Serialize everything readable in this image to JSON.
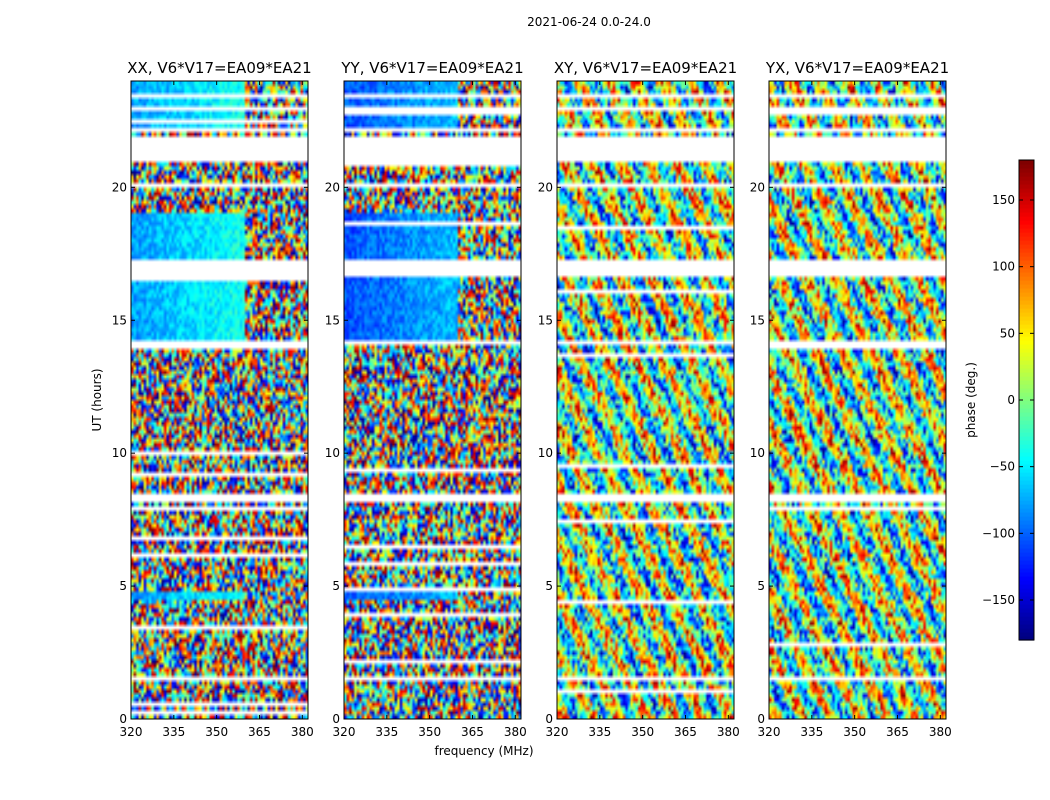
{
  "chart_data": {
    "type": "heatmap",
    "title": "2021-06-24 0.0-24.0",
    "colormap": "jet",
    "panels": [
      {
        "title": "XX, V6*V17=EA09*EA21",
        "pattern": "parallel"
      },
      {
        "title": "YY, V6*V17=EA09*EA21",
        "pattern": "parallel"
      },
      {
        "title": "XY, V6*V17=EA09*EA21",
        "pattern": "cross"
      },
      {
        "title": "YX, V6*V17=EA09*EA21",
        "pattern": "cross"
      }
    ],
    "xlabel": "frequency (MHz)",
    "ylabel": "UT (hours)",
    "xlim": [
      320,
      382
    ],
    "ylim": [
      0,
      24
    ],
    "xticks": [
      320,
      335,
      350,
      365,
      380
    ],
    "xtick_labels": [
      "320",
      "335",
      "350",
      "365",
      "380"
    ],
    "yticks": [
      0,
      5,
      10,
      15,
      20
    ],
    "ytick_labels": [
      "0",
      "5",
      "10",
      "15",
      "20"
    ],
    "colorbar": {
      "label": "phase (deg.)",
      "range": [
        -180,
        180
      ],
      "ticks": [
        -150,
        -100,
        -50,
        0,
        50,
        100,
        150
      ],
      "tick_labels": [
        "−150",
        "−100",
        "−50",
        "0",
        "50",
        "100",
        "150"
      ]
    },
    "flagged_ut_ranges": [
      [
        0.45,
        0.55
      ],
      [
        1.5,
        1.6
      ],
      [
        8.2,
        8.55
      ],
      [
        14.1,
        14.25
      ],
      [
        16.65,
        17.3
      ],
      [
        19.0,
        19.1
      ],
      [
        20.0,
        20.15
      ],
      [
        20.95,
        22.0
      ],
      [
        22.05,
        22.2
      ],
      [
        22.9,
        23.05
      ],
      [
        23.35,
        23.5
      ]
    ],
    "calibrated_ut_ranges": [
      [
        4.45,
        4.75
      ],
      [
        14.25,
        16.65
      ],
      [
        17.3,
        19.0
      ],
      [
        22.2,
        22.9
      ],
      [
        23.05,
        23.35
      ],
      [
        23.5,
        24.0
      ]
    ]
  }
}
